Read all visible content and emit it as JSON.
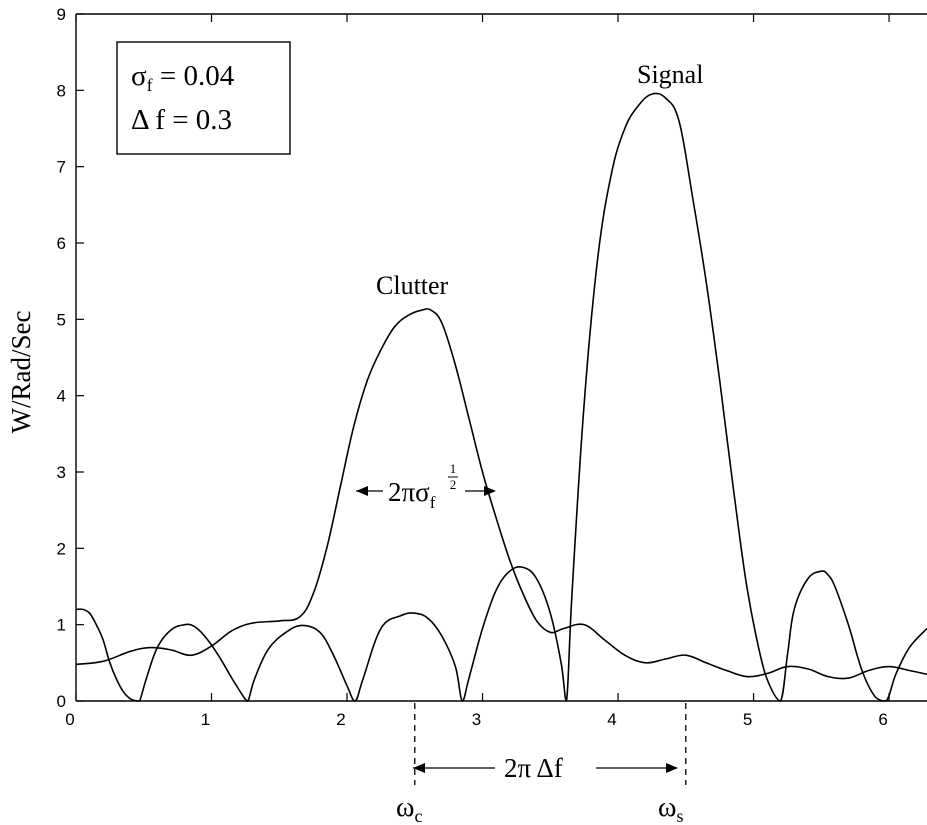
{
  "chart_data": {
    "type": "line",
    "ylabel": "W/Rad/Sec",
    "xlabel": "",
    "xlim": [
      0,
      6.28
    ],
    "ylim": [
      0,
      9
    ],
    "x_ticks": [
      "0",
      "1",
      "2",
      "3",
      "4",
      "5",
      "6"
    ],
    "y_ticks": [
      "0",
      "1",
      "2",
      "3",
      "4",
      "5",
      "6",
      "7",
      "8",
      "9"
    ],
    "grid": false,
    "legend": {
      "placement": "top-left",
      "sigma_symbol": "σ",
      "sigma_sub": "f",
      "sigma_text": " = 0.04",
      "delta_text": "Δ f = 0.3"
    },
    "annotations": {
      "signal": "Signal",
      "clutter": "Clutter",
      "width_main": "2πσ",
      "width_sub": "f",
      "width_exp_num": "1",
      "width_exp_den": "2",
      "separation": "2π Δf",
      "omega_c": "ω",
      "omega_c_sub": "c",
      "omega_s": "ω",
      "omega_s_sub": "s"
    },
    "marker_x": {
      "omega_c": 2.5,
      "omega_s": 4.5
    },
    "series": [
      {
        "x": [
          0.0,
          0.05,
          0.1,
          0.15,
          0.2,
          0.25,
          0.3,
          0.35,
          0.4,
          0.45,
          0.47,
          0.52,
          0.6,
          0.7,
          0.8,
          0.87,
          0.95,
          1.05,
          1.15,
          1.25,
          1.27,
          1.32,
          1.42,
          1.55,
          1.67,
          1.8,
          1.9,
          2.0,
          2.06,
          2.12,
          2.25,
          2.4,
          2.5,
          2.6,
          2.7,
          2.8,
          2.85,
          2.9,
          3.0,
          3.1,
          3.2,
          3.3,
          3.4,
          3.5,
          3.58,
          3.62,
          3.66,
          3.75,
          3.85,
          3.95,
          4.05,
          4.15,
          4.25,
          4.35,
          4.45,
          4.55,
          4.65,
          4.75,
          4.85,
          4.95,
          5.05,
          5.12,
          5.2,
          5.25,
          5.3,
          5.4,
          5.5,
          5.55,
          5.6,
          5.7,
          5.8,
          5.9,
          5.98,
          6.05,
          6.15,
          6.28
        ],
        "y": [
          1.2,
          1.2,
          1.15,
          1.0,
          0.8,
          0.5,
          0.28,
          0.12,
          0.03,
          0.0,
          0.0,
          0.3,
          0.7,
          0.93,
          1.0,
          0.98,
          0.85,
          0.6,
          0.3,
          0.02,
          0.0,
          0.3,
          0.68,
          0.9,
          0.99,
          0.9,
          0.6,
          0.2,
          0.0,
          0.3,
          0.95,
          1.12,
          1.15,
          1.08,
          0.85,
          0.45,
          0.0,
          0.3,
          0.95,
          1.45,
          1.7,
          1.75,
          1.6,
          1.15,
          0.5,
          0.0,
          1.4,
          3.9,
          5.8,
          6.9,
          7.5,
          7.8,
          7.95,
          7.9,
          7.6,
          6.6,
          5.5,
          4.2,
          2.8,
          1.5,
          0.6,
          0.2,
          0.0,
          0.6,
          1.2,
          1.6,
          1.7,
          1.65,
          1.5,
          1.0,
          0.4,
          0.05,
          0.0,
          0.35,
          0.7,
          0.95
        ]
      },
      {
        "x": [
          0.0,
          0.2,
          0.4,
          0.55,
          0.7,
          0.85,
          1.0,
          1.15,
          1.3,
          1.5,
          1.65,
          1.75,
          1.85,
          1.95,
          2.05,
          2.15,
          2.25,
          2.35,
          2.45,
          2.55,
          2.62,
          2.7,
          2.8,
          2.9,
          3.0,
          3.1,
          3.2,
          3.3,
          3.4,
          3.5,
          3.6,
          3.75,
          3.9,
          4.05,
          4.2,
          4.35,
          4.5,
          4.65,
          4.8,
          4.95,
          5.1,
          5.25,
          5.4,
          5.55,
          5.7,
          5.85,
          6.0,
          6.15,
          6.28
        ],
        "y": [
          0.48,
          0.52,
          0.65,
          0.7,
          0.67,
          0.6,
          0.72,
          0.92,
          1.02,
          1.05,
          1.1,
          1.4,
          2.0,
          2.8,
          3.6,
          4.2,
          4.6,
          4.9,
          5.05,
          5.12,
          5.12,
          4.95,
          4.4,
          3.7,
          3.0,
          2.4,
          1.85,
          1.4,
          1.05,
          0.9,
          0.95,
          1.0,
          0.8,
          0.6,
          0.5,
          0.55,
          0.6,
          0.5,
          0.4,
          0.32,
          0.36,
          0.45,
          0.42,
          0.32,
          0.3,
          0.4,
          0.45,
          0.4,
          0.35
        ]
      }
    ]
  }
}
